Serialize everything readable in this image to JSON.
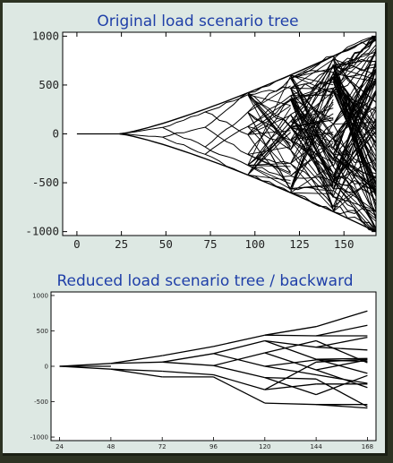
{
  "chart_data": [
    {
      "type": "line",
      "title": "Original load scenario tree",
      "xlabel": "",
      "ylabel": "",
      "xlim": [
        -8,
        168
      ],
      "ylim": [
        -1040,
        1040
      ],
      "xticks": [
        0,
        25,
        50,
        75,
        100,
        125,
        150
      ],
      "yticks": [
        1000,
        500,
        0,
        -500,
        -1000
      ],
      "stages": [
        0,
        24,
        48,
        72,
        96,
        120,
        144,
        168
      ],
      "branching": [
        1,
        2,
        2,
        2,
        2,
        2,
        2
      ],
      "envelope_at_168": 1000,
      "grid": false,
      "legend": "none"
    },
    {
      "type": "line",
      "title": "Reduced load scenario tree / backward",
      "xlabel": "",
      "ylabel": "",
      "xlim": [
        20,
        172
      ],
      "ylim": [
        -1050,
        1050
      ],
      "xticks": [
        24,
        48,
        72,
        96,
        120,
        144,
        168
      ],
      "yticks": [
        1000,
        500,
        0,
        -500,
        -1000
      ],
      "grid": false,
      "legend": "none",
      "segments": [
        {
          "x": [
            24,
            48
          ],
          "y": [
            0,
            40
          ]
        },
        {
          "x": [
            24,
            48
          ],
          "y": [
            0,
            -40
          ]
        },
        {
          "x": [
            24,
            48
          ],
          "y": [
            0,
            0
          ]
        },
        {
          "x": [
            48,
            72
          ],
          "y": [
            40,
            150
          ]
        },
        {
          "x": [
            48,
            72
          ],
          "y": [
            40,
            60
          ]
        },
        {
          "x": [
            48,
            72
          ],
          "y": [
            -40,
            -150
          ]
        },
        {
          "x": [
            48,
            72
          ],
          "y": [
            -40,
            -70
          ]
        },
        {
          "x": [
            72,
            96
          ],
          "y": [
            150,
            280
          ]
        },
        {
          "x": [
            72,
            96
          ],
          "y": [
            60,
            180
          ]
        },
        {
          "x": [
            72,
            96
          ],
          "y": [
            60,
            10
          ]
        },
        {
          "x": [
            72,
            96
          ],
          "y": [
            -70,
            -120
          ]
        },
        {
          "x": [
            72,
            96
          ],
          "y": [
            -150,
            -150
          ]
        },
        {
          "x": [
            96,
            120
          ],
          "y": [
            280,
            440
          ]
        },
        {
          "x": [
            96,
            120
          ],
          "y": [
            180,
            360
          ]
        },
        {
          "x": [
            96,
            120
          ],
          "y": [
            180,
            0
          ]
        },
        {
          "x": [
            96,
            120
          ],
          "y": [
            10,
            190
          ]
        },
        {
          "x": [
            96,
            120
          ],
          "y": [
            10,
            -160
          ]
        },
        {
          "x": [
            96,
            120
          ],
          "y": [
            -120,
            -330
          ]
        },
        {
          "x": [
            96,
            120
          ],
          "y": [
            -150,
            -520
          ]
        },
        {
          "x": [
            120,
            144
          ],
          "y": [
            440,
            560
          ]
        },
        {
          "x": [
            120,
            144
          ],
          "y": [
            440,
            430
          ]
        },
        {
          "x": [
            120,
            144
          ],
          "y": [
            360,
            270
          ]
        },
        {
          "x": [
            120,
            144
          ],
          "y": [
            360,
            100
          ]
        },
        {
          "x": [
            120,
            144
          ],
          "y": [
            190,
            360
          ]
        },
        {
          "x": [
            120,
            144
          ],
          "y": [
            190,
            -50
          ]
        },
        {
          "x": [
            120,
            144
          ],
          "y": [
            0,
            90
          ]
        },
        {
          "x": [
            120,
            144
          ],
          "y": [
            0,
            -120
          ]
        },
        {
          "x": [
            120,
            144
          ],
          "y": [
            -160,
            -180
          ]
        },
        {
          "x": [
            120,
            144
          ],
          "y": [
            -160,
            -400
          ]
        },
        {
          "x": [
            120,
            144
          ],
          "y": [
            -330,
            60
          ]
        },
        {
          "x": [
            120,
            144
          ],
          "y": [
            -330,
            -250
          ]
        },
        {
          "x": [
            120,
            144
          ],
          "y": [
            -520,
            -540
          ]
        },
        {
          "x": [
            144,
            168
          ],
          "y": [
            560,
            780
          ]
        },
        {
          "x": [
            144,
            168
          ],
          "y": [
            430,
            430
          ]
        },
        {
          "x": [
            144,
            168
          ],
          "y": [
            430,
            580
          ]
        },
        {
          "x": [
            144,
            168
          ],
          "y": [
            270,
            410
          ]
        },
        {
          "x": [
            144,
            168
          ],
          "y": [
            270,
            230
          ]
        },
        {
          "x": [
            144,
            168
          ],
          "y": [
            100,
            110
          ]
        },
        {
          "x": [
            144,
            168
          ],
          "y": [
            100,
            -100
          ]
        },
        {
          "x": [
            144,
            168
          ],
          "y": [
            360,
            50
          ]
        },
        {
          "x": [
            144,
            168
          ],
          "y": [
            -50,
            90
          ]
        },
        {
          "x": [
            144,
            168
          ],
          "y": [
            -50,
            -300
          ]
        },
        {
          "x": [
            144,
            168
          ],
          "y": [
            90,
            70
          ]
        },
        {
          "x": [
            144,
            168
          ],
          "y": [
            -120,
            -240
          ]
        },
        {
          "x": [
            144,
            168
          ],
          "y": [
            -180,
            -570
          ]
        },
        {
          "x": [
            144,
            168
          ],
          "y": [
            -400,
            -130
          ]
        },
        {
          "x": [
            144,
            168
          ],
          "y": [
            60,
            100
          ]
        },
        {
          "x": [
            144,
            168
          ],
          "y": [
            -250,
            -250
          ]
        },
        {
          "x": [
            144,
            168
          ],
          "y": [
            -540,
            -540
          ]
        },
        {
          "x": [
            144,
            168
          ],
          "y": [
            -540,
            -590
          ]
        }
      ]
    }
  ]
}
